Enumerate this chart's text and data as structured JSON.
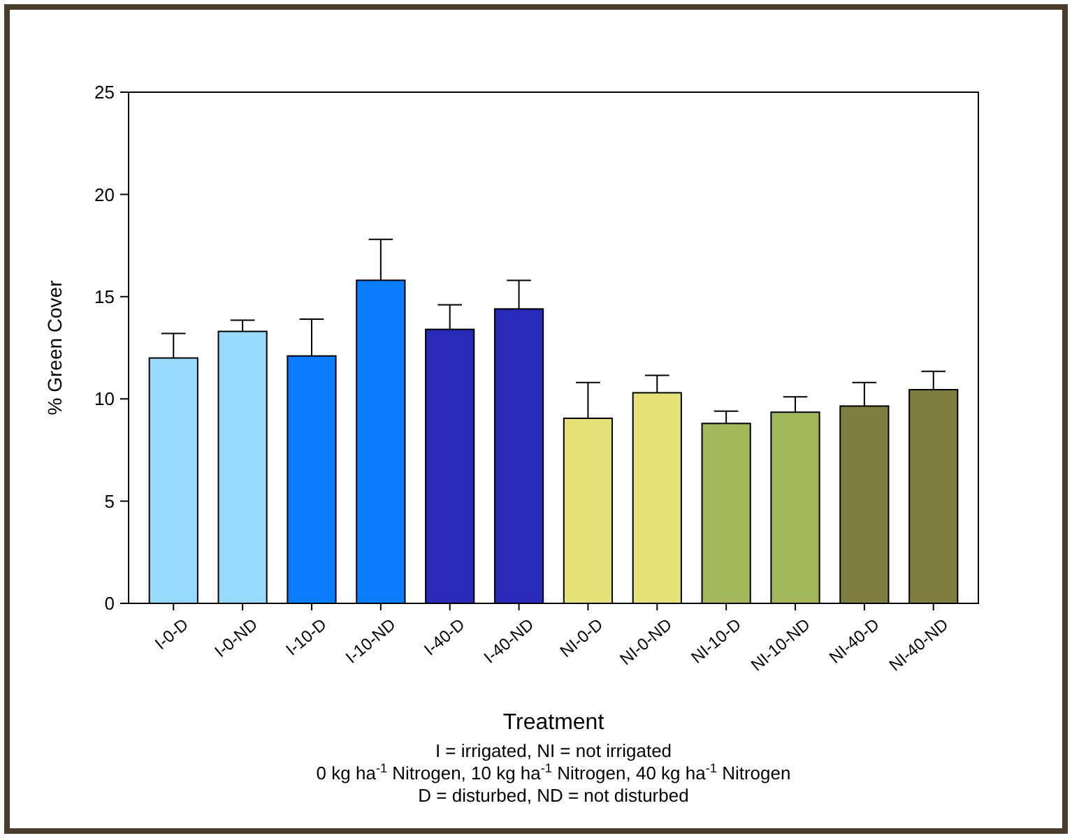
{
  "chart_data": {
    "type": "bar",
    "xlabel": "Treatment",
    "ylabel": "% Green Cover",
    "categories": [
      "I-0-D",
      "I-0-ND",
      "I-10-D",
      "I-10-ND",
      "I-40-D",
      "I-40-ND",
      "NI-0-D",
      "NI-0-ND",
      "NI-10-D",
      "NI-10-ND",
      "NI-40-D",
      "NI-40-ND"
    ],
    "values": [
      12.0,
      13.3,
      12.1,
      15.8,
      13.4,
      14.4,
      9.05,
      10.3,
      8.8,
      9.35,
      9.65,
      10.45
    ],
    "errors": [
      [
        12.0,
        13.2
      ],
      [
        13.3,
        13.85
      ],
      [
        12.1,
        13.9
      ],
      [
        15.8,
        17.8
      ],
      [
        13.4,
        14.6
      ],
      [
        14.4,
        15.8
      ],
      [
        9.05,
        10.8
      ],
      [
        10.3,
        11.15
      ],
      [
        8.8,
        9.4
      ],
      [
        9.35,
        10.1
      ],
      [
        9.65,
        10.8
      ],
      [
        10.45,
        11.35
      ]
    ],
    "colors": [
      "#99dbff",
      "#99dbff",
      "#0a7cff",
      "#0a7cff",
      "#2a2ab8",
      "#2a2ab8",
      "#e6e27a",
      "#e6e27a",
      "#a3b85a",
      "#a3b85a",
      "#7f7d40",
      "#7f7d40"
    ],
    "ylim": [
      0,
      25
    ],
    "yticks": [
      0,
      5,
      10,
      15,
      20,
      25
    ],
    "annotations": [
      "I = irrigated, NI = not irrigated",
      "0 kg ha$^{-1}$ Nitrogen, 10 kg ha$^{-1}$ Nitrogen, 40 kg ha$^{-1}$ Nitrogen",
      "D = disturbed, ND = not disturbed"
    ]
  }
}
